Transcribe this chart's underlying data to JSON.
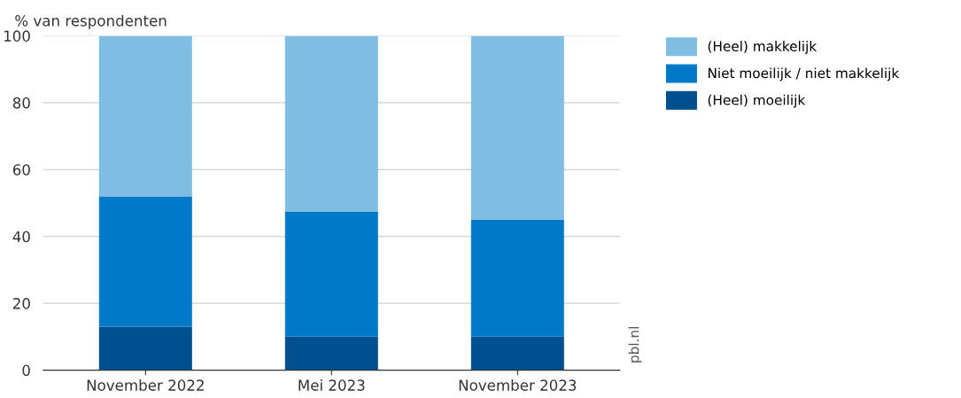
{
  "chart_data": {
    "type": "bar",
    "stacked": true,
    "ylabel": "% van respondenten",
    "categories": [
      "November 2022",
      "Mei 2023",
      "November 2023"
    ],
    "series": [
      {
        "name": "(Heel) moeilijk",
        "color": "#004f8e",
        "values": [
          13,
          10,
          10
        ]
      },
      {
        "name": "Niet moeilijk / niet makkelijk",
        "color": "#0079c8",
        "values": [
          39,
          37.5,
          35
        ]
      },
      {
        "name": "(Heel) makkelijk",
        "color": "#80bde3",
        "values": [
          48,
          52.5,
          55
        ]
      }
    ],
    "ylim": [
      0,
      100
    ],
    "yticks": [
      0,
      20,
      40,
      60,
      80,
      100
    ],
    "grid": "y",
    "legend": "top right",
    "annotations": [
      "pbl.nl"
    ]
  }
}
